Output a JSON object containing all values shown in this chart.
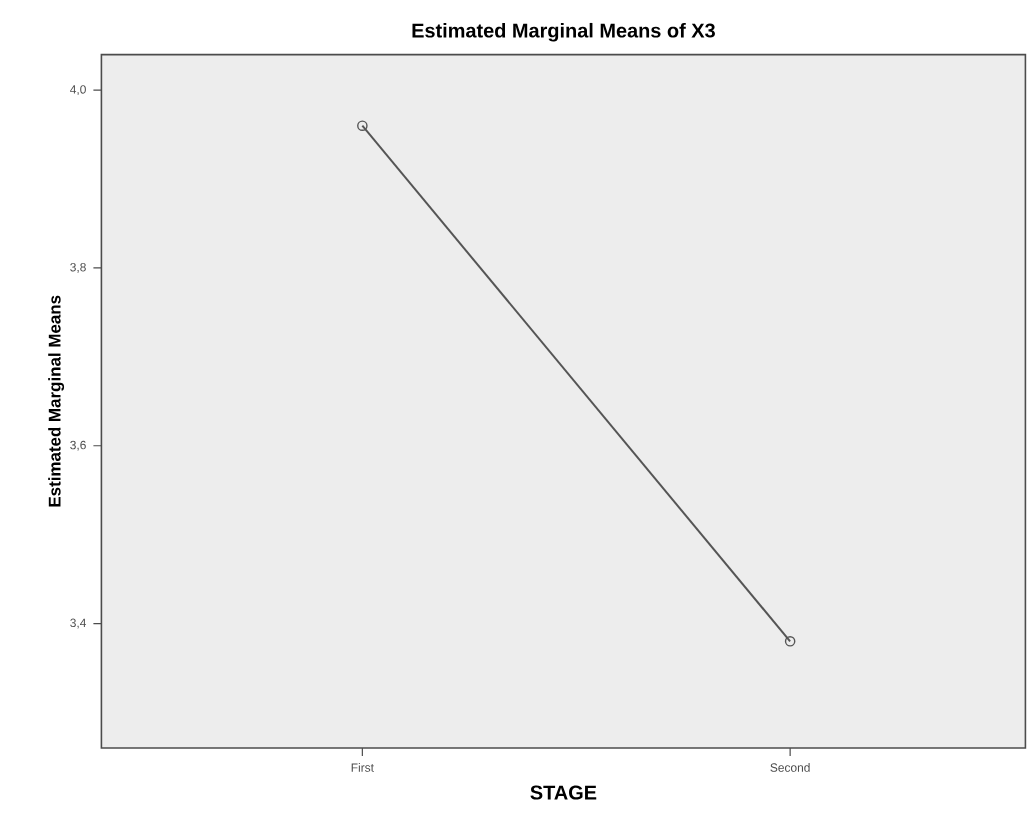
{
  "chart_data": {
    "type": "line",
    "title": "Estimated Marginal Means of X3",
    "xlabel": "STAGE",
    "ylabel": "Estimated Marginal Means",
    "categories": [
      "First",
      "Second"
    ],
    "series": [
      {
        "color": "#555555",
        "values": [
          3.96,
          3.38
        ]
      }
    ],
    "ylim": [
      3.26,
      4.04
    ],
    "yticks": [
      {
        "value": 3.4,
        "label": "3,4"
      },
      {
        "value": 3.6,
        "label": "3,6"
      },
      {
        "value": 3.8,
        "label": "3,8"
      },
      {
        "value": 4.0,
        "label": "4,0"
      }
    ],
    "marker": "circle",
    "line_style": "solid",
    "grid": false
  }
}
